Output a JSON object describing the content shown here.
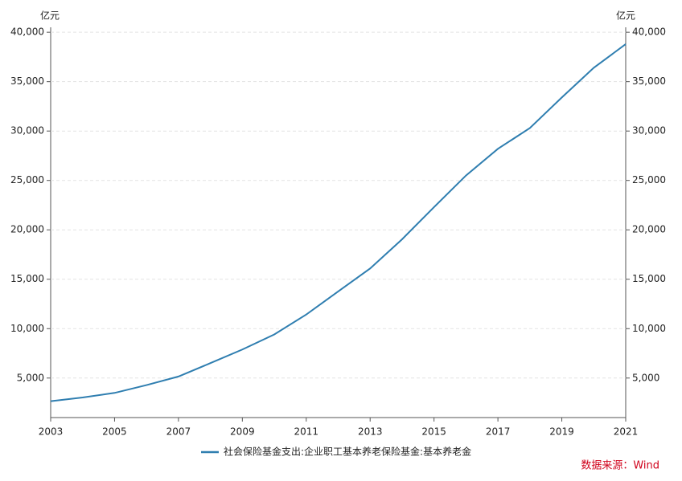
{
  "chart_data": {
    "type": "line",
    "y_label": "亿元",
    "y2_label": "亿元",
    "x": [
      2003,
      2004,
      2005,
      2006,
      2007,
      2008,
      2009,
      2010,
      2011,
      2012,
      2013,
      2014,
      2015,
      2016,
      2017,
      2018,
      2019,
      2020,
      2021
    ],
    "series": [
      {
        "name": "社会保险基金支出:企业职工基本养老保险基金:基本养老金",
        "color": "#2f7eb0",
        "values": [
          2656,
          3031,
          3495,
          4287,
          5154,
          6508,
          7887,
          9410,
          11426,
          13766,
          16090,
          19045,
          22300,
          25500,
          28200,
          30300,
          33400,
          36400,
          38800
        ]
      }
    ],
    "xlim": [
      2003,
      2021
    ],
    "xticks": [
      2003,
      2005,
      2007,
      2009,
      2011,
      2013,
      2015,
      2017,
      2019,
      2021
    ],
    "ylim": [
      1000,
      40500
    ],
    "yticks": [
      {
        "value": 5000,
        "label": "5,000"
      },
      {
        "value": 10000,
        "label": "10,000"
      },
      {
        "value": 15000,
        "label": "15,000"
      },
      {
        "value": 20000,
        "label": "20,000"
      },
      {
        "value": 25000,
        "label": "25,000"
      },
      {
        "value": 30000,
        "label": "30,000"
      },
      {
        "value": 35000,
        "label": "35,000"
      },
      {
        "value": 40000,
        "label": "40,000"
      }
    ],
    "y2lim": [
      1000,
      40500
    ],
    "y2ticks": [
      {
        "value": 5000,
        "label": "5,000"
      },
      {
        "value": 10000,
        "label": "10,000"
      },
      {
        "value": 15000,
        "label": "15,000"
      },
      {
        "value": 20000,
        "label": "20,000"
      },
      {
        "value": 25000,
        "label": "25,000"
      },
      {
        "value": 30000,
        "label": "30,000"
      },
      {
        "value": 35000,
        "label": "35,000"
      },
      {
        "value": 40000,
        "label": "40,000"
      }
    ],
    "grid": true,
    "legend": "bottom",
    "source": "数据来源：Wind"
  }
}
